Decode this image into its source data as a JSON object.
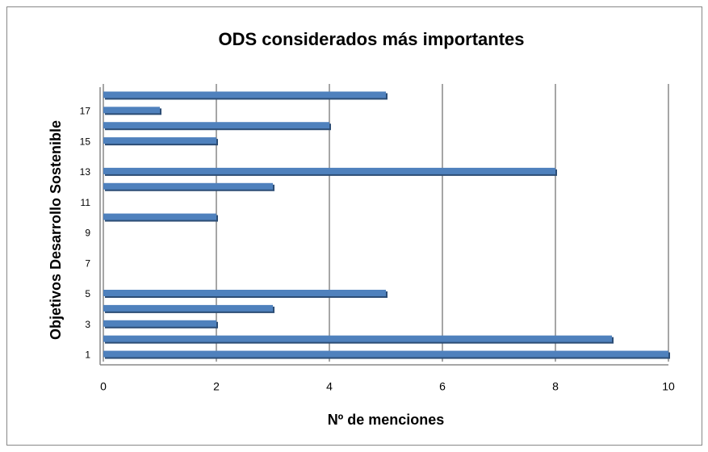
{
  "chart_data": {
    "type": "bar",
    "orientation": "horizontal",
    "title": "ODS considerados más importantes",
    "x_label": "Nº de menciones",
    "y_label": "Objetivos Desarrollo Sostenible",
    "categories": [
      "1",
      null,
      "3",
      null,
      "5",
      null,
      "7",
      null,
      "9",
      null,
      "11",
      null,
      "13",
      null,
      "15",
      null,
      "17",
      null
    ],
    "values": [
      10,
      9,
      2,
      3,
      5,
      0,
      0,
      0,
      0,
      2,
      0,
      3,
      8,
      0,
      2,
      4,
      1,
      5
    ],
    "color": "#4f81bd",
    "xlim": [
      0,
      10
    ],
    "xticks": [
      0,
      2,
      4,
      6,
      8,
      10
    ],
    "grid": true
  }
}
